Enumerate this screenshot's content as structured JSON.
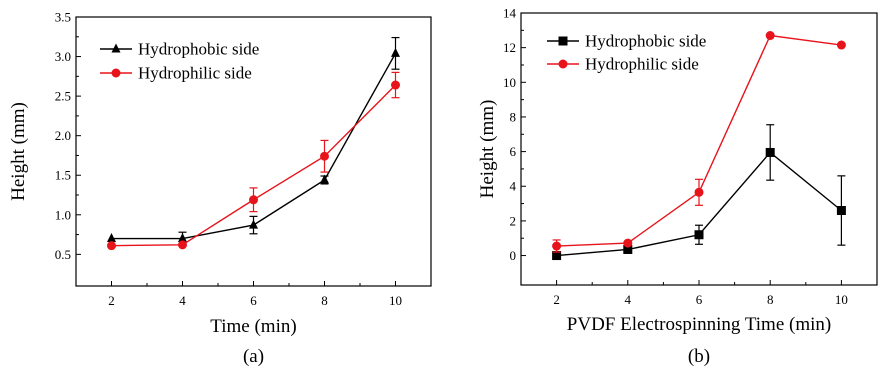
{
  "colors": {
    "hydrophobic": "#000000",
    "hydrophilic": "#e8141b",
    "axis": "#000000"
  },
  "chart_data": [
    {
      "type": "line",
      "caption": "(a)",
      "xlabel": "Time (min)",
      "ylabel": "Height (mm)",
      "x": [
        2,
        4,
        6,
        8,
        10
      ],
      "xlim": [
        1,
        11
      ],
      "ylim": [
        0.1,
        3.5
      ],
      "xticks": [
        2,
        4,
        6,
        8,
        10
      ],
      "yticks": [
        "0.5",
        "1.0",
        "1.5",
        "2.0",
        "2.5",
        "3.0",
        "3.5"
      ],
      "legend_position": "top-left",
      "series": [
        {
          "name": "Hydrophobic side",
          "marker": "triangle",
          "color": "#000000",
          "values": [
            0.7,
            0.7,
            0.87,
            1.44,
            3.04
          ],
          "errors": [
            0.0,
            0.08,
            0.11,
            0.05,
            0.2
          ]
        },
        {
          "name": "Hydrophilic side",
          "marker": "circle",
          "color": "#e8141b",
          "values": [
            0.61,
            0.62,
            1.19,
            1.74,
            2.64
          ],
          "errors": [
            0.0,
            0.0,
            0.15,
            0.2,
            0.16
          ]
        }
      ]
    },
    {
      "type": "line",
      "caption": "(b)",
      "xlabel": "PVDF Electrospinning Time (min)",
      "ylabel": "Height (mm)",
      "x": [
        2,
        4,
        6,
        8,
        10
      ],
      "xlim": [
        1,
        11
      ],
      "ylim": [
        -1.7,
        14
      ],
      "xticks": [
        2,
        4,
        6,
        8,
        10
      ],
      "yticks": [
        "0",
        "2",
        "4",
        "6",
        "8",
        "10",
        "12",
        "14"
      ],
      "legend_position": "top-left",
      "series": [
        {
          "name": "Hydrophobic side",
          "marker": "square",
          "color": "#000000",
          "values": [
            0.0,
            0.35,
            1.2,
            5.95,
            2.6
          ],
          "errors": [
            0.0,
            0.0,
            0.55,
            1.6,
            2.0
          ]
        },
        {
          "name": "Hydrophilic side",
          "marker": "circle",
          "color": "#e8141b",
          "values": [
            0.55,
            0.72,
            3.65,
            12.7,
            12.15
          ],
          "errors": [
            0.35,
            0.0,
            0.75,
            0.0,
            0.0
          ]
        }
      ]
    }
  ]
}
